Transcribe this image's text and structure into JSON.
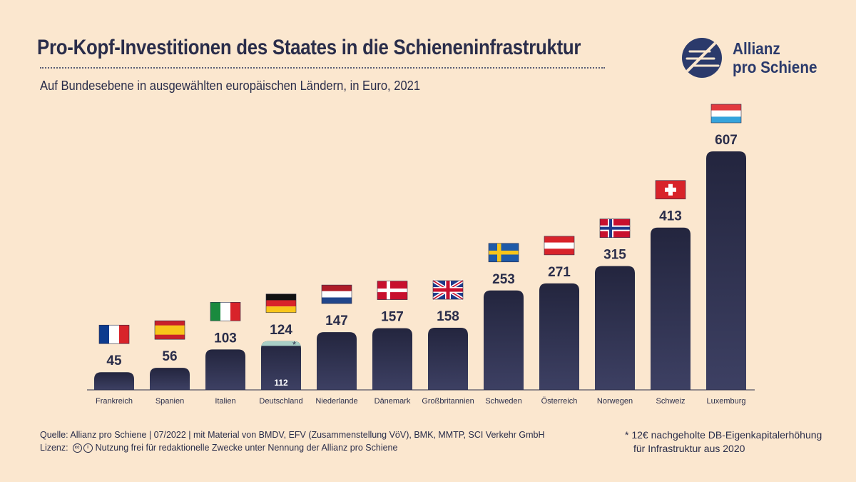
{
  "title": "Pro-Kopf-Investitionen des Staates in die Schieneninfrastruktur",
  "subtitle": "Auf Bundesebene in ausgewählten europäischen Ländern, in Euro, 2021",
  "logo": {
    "line1": "Allianz",
    "line2": "pro Schiene"
  },
  "chart_data": {
    "type": "bar",
    "categories": [
      "Frankreich",
      "Spanien",
      "Italien",
      "Deutschland",
      "Niederlande",
      "Dänemark",
      "Großbritannien",
      "Schweden",
      "Österreich",
      "Norwegen",
      "Schweiz",
      "Luxemburg"
    ],
    "values": [
      45,
      56,
      103,
      124,
      147,
      157,
      158,
      253,
      271,
      315,
      413,
      607
    ],
    "flags": [
      "france-flag",
      "spain-flag",
      "italy-flag",
      "germany-flag",
      "netherlands-flag",
      "denmark-flag",
      "uk-flag",
      "sweden-flag",
      "austria-flag",
      "norway-flag",
      "switzerland-flag",
      "luxembourg-flag"
    ],
    "annotation": {
      "category": "Deutschland",
      "base_value": 112,
      "marker": "*"
    },
    "title": "Pro-Kopf-Investitionen des Staates in die Schieneninfrastruktur",
    "ylim": [
      0,
      607
    ],
    "grid": false,
    "legend": "none",
    "colors": {
      "bar": "#2b2d48",
      "bar_gradient_bottom": "#3c3f62",
      "highlight": "#a9cfc6",
      "background": "#fbe7cf"
    }
  },
  "source": {
    "line1": "Quelle: Allianz pro Schiene | 07/2022 | mit Material von BMDV, EFV (Zusammenstellung VöV), BMK, MMTP, SCI Verkehr GmbH",
    "license_label": "Lizenz:",
    "license_text": "Nutzung frei für redaktionelle Zwecke unter Nennung der Allianz pro Schiene"
  },
  "footnote": {
    "line1": "* 12€ nachgeholte DB-Eigenkapitalerhöhung",
    "line2": "für Infrastruktur aus 2020"
  }
}
